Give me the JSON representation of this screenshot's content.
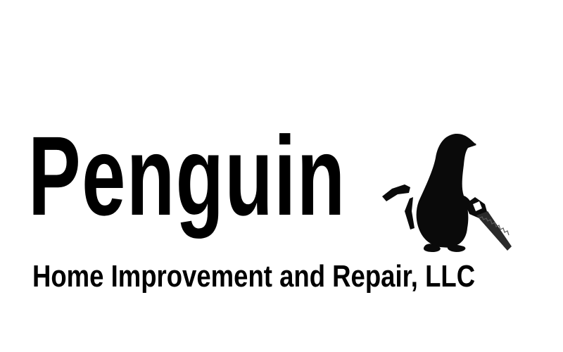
{
  "logo": {
    "name": "Penguin",
    "tagline": "Home Improvement and Repair, LLC",
    "mascot_icon": "penguin-with-hammer-and-saw-icon",
    "colors": {
      "text": "#000000",
      "background": "#ffffff",
      "mascot": "#0a0a0a",
      "saw_blade": "#2a2a2a"
    }
  }
}
